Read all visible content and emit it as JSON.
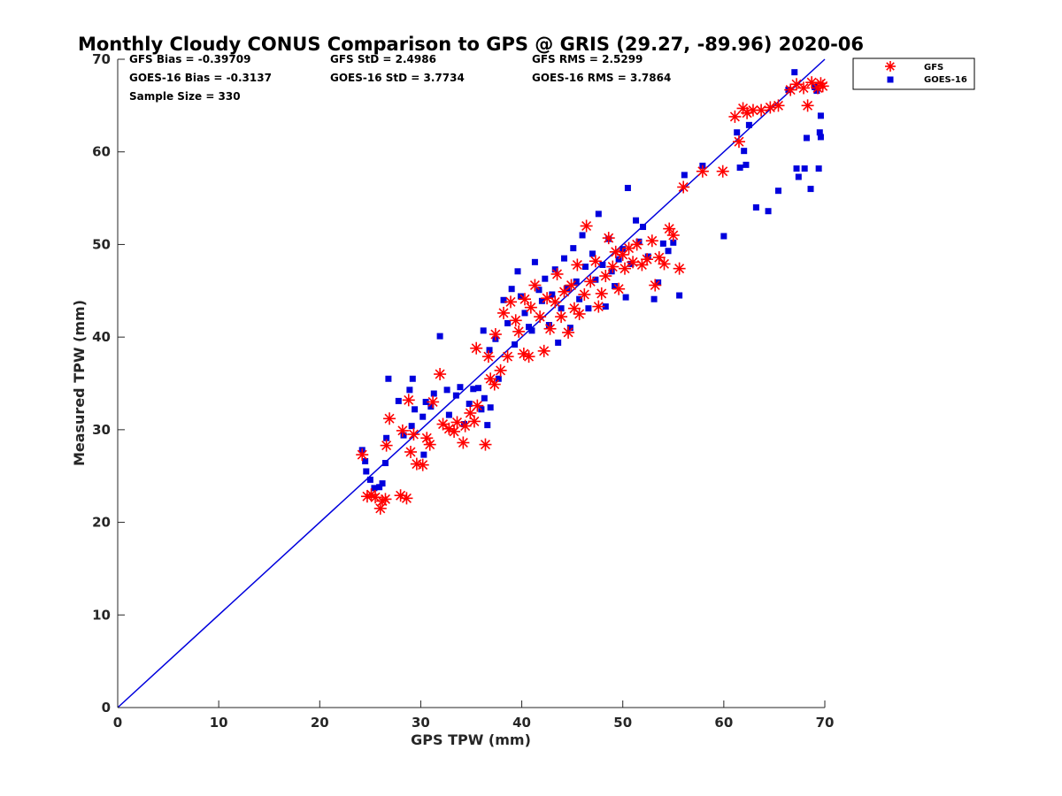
{
  "chart_data": {
    "type": "scatter",
    "title": "Monthly Cloudy CONUS Comparison to GPS @ GRIS (29.27, -89.96) 2020-06",
    "xlabel": "GPS TPW (mm)",
    "ylabel": "Measured TPW (mm)",
    "xlim": [
      0,
      70
    ],
    "ylim": [
      0,
      70
    ],
    "xticks": [
      0,
      10,
      20,
      30,
      40,
      50,
      60,
      70
    ],
    "yticks": [
      0,
      10,
      20,
      30,
      40,
      50,
      60,
      70
    ],
    "grid": false,
    "legend_position": "outside-top-right",
    "reference_line": {
      "x": [
        0,
        70
      ],
      "y": [
        0,
        70
      ],
      "color": "#0000dd"
    },
    "stats": {
      "gfs_bias": "GFS Bias = -0.39709",
      "goes_bias": "GOES-16 Bias = -0.3137",
      "sample_size": "Sample Size = 330",
      "gfs_std": "GFS StD = 2.4986",
      "goes_std": "GOES-16 StD = 3.7734",
      "gfs_rms": "GFS RMS = 2.5299",
      "goes_rms": "GOES-16 RMS = 3.7864"
    },
    "series": [
      {
        "name": "GFS",
        "marker": "asterisk",
        "color": "#ff0000",
        "points": [
          [
            24.2,
            27.3
          ],
          [
            24.7,
            22.8
          ],
          [
            25.1,
            23.0
          ],
          [
            25.5,
            22.7
          ],
          [
            26.0,
            21.5
          ],
          [
            26.2,
            22.3
          ],
          [
            26.5,
            22.5
          ],
          [
            26.6,
            28.3
          ],
          [
            26.9,
            31.2
          ],
          [
            28.0,
            22.9
          ],
          [
            28.6,
            22.6
          ],
          [
            28.2,
            29.9
          ],
          [
            28.8,
            33.2
          ],
          [
            29.0,
            27.6
          ],
          [
            29.3,
            29.5
          ],
          [
            29.6,
            26.3
          ],
          [
            30.2,
            26.2
          ],
          [
            30.6,
            29.1
          ],
          [
            30.9,
            28.4
          ],
          [
            31.2,
            33.0
          ],
          [
            31.9,
            36.0
          ],
          [
            32.2,
            30.6
          ],
          [
            32.8,
            30.1
          ],
          [
            33.3,
            29.8
          ],
          [
            33.6,
            30.8
          ],
          [
            34.2,
            28.6
          ],
          [
            34.4,
            30.4
          ],
          [
            34.9,
            31.8
          ],
          [
            35.3,
            30.9
          ],
          [
            35.6,
            32.6
          ],
          [
            36.4,
            28.4
          ],
          [
            36.9,
            35.5
          ],
          [
            37.3,
            34.9
          ],
          [
            35.5,
            38.8
          ],
          [
            36.7,
            37.9
          ],
          [
            37.4,
            40.3
          ],
          [
            37.9,
            36.4
          ],
          [
            38.6,
            37.9
          ],
          [
            38.2,
            42.6
          ],
          [
            38.9,
            43.8
          ],
          [
            39.4,
            41.8
          ],
          [
            39.7,
            40.6
          ],
          [
            40.2,
            38.2
          ],
          [
            40.7,
            37.9
          ],
          [
            40.3,
            44.1
          ],
          [
            40.9,
            43.2
          ],
          [
            41.3,
            45.6
          ],
          [
            41.8,
            42.2
          ],
          [
            42.2,
            38.5
          ],
          [
            42.5,
            44.2
          ],
          [
            42.8,
            40.9
          ],
          [
            43.3,
            43.8
          ],
          [
            43.5,
            46.8
          ],
          [
            43.9,
            42.2
          ],
          [
            44.2,
            44.9
          ],
          [
            44.6,
            40.5
          ],
          [
            44.9,
            45.6
          ],
          [
            45.2,
            43.1
          ],
          [
            45.5,
            47.8
          ],
          [
            45.7,
            42.5
          ],
          [
            46.2,
            44.6
          ],
          [
            46.4,
            52.0
          ],
          [
            46.8,
            46.0
          ],
          [
            47.3,
            48.2
          ],
          [
            47.6,
            43.3
          ],
          [
            47.9,
            44.7
          ],
          [
            48.3,
            46.6
          ],
          [
            48.6,
            50.7
          ],
          [
            49.0,
            47.6
          ],
          [
            49.3,
            49.2
          ],
          [
            49.6,
            45.2
          ],
          [
            50.0,
            48.9
          ],
          [
            50.2,
            47.4
          ],
          [
            50.6,
            49.6
          ],
          [
            51.0,
            48.1
          ],
          [
            51.4,
            50.0
          ],
          [
            51.9,
            47.8
          ],
          [
            52.4,
            48.4
          ],
          [
            52.9,
            50.4
          ],
          [
            53.2,
            45.6
          ],
          [
            53.6,
            48.6
          ],
          [
            54.1,
            47.9
          ],
          [
            54.6,
            51.7
          ],
          [
            55.0,
            51.0
          ],
          [
            55.6,
            47.4
          ],
          [
            56.0,
            56.2
          ],
          [
            57.9,
            57.9
          ],
          [
            59.9,
            57.9
          ],
          [
            61.1,
            63.8
          ],
          [
            61.5,
            61.1
          ],
          [
            61.9,
            64.7
          ],
          [
            62.3,
            64.2
          ],
          [
            62.9,
            64.5
          ],
          [
            63.7,
            64.5
          ],
          [
            64.6,
            64.8
          ],
          [
            65.4,
            65.0
          ],
          [
            66.6,
            66.7
          ],
          [
            67.2,
            67.3
          ],
          [
            67.9,
            66.9
          ],
          [
            68.3,
            65.0
          ],
          [
            68.7,
            67.5
          ],
          [
            69.3,
            66.9
          ],
          [
            69.6,
            67.4
          ],
          [
            69.8,
            67.1
          ]
        ]
      },
      {
        "name": "GOES-16",
        "marker": "square",
        "color": "#0000dd",
        "points": [
          [
            24.2,
            27.8
          ],
          [
            24.5,
            26.6
          ],
          [
            24.6,
            25.5
          ],
          [
            25.0,
            24.6
          ],
          [
            25.4,
            23.7
          ],
          [
            25.9,
            23.8
          ],
          [
            26.2,
            24.2
          ],
          [
            26.5,
            26.4
          ],
          [
            26.6,
            29.1
          ],
          [
            26.8,
            35.5
          ],
          [
            27.8,
            33.1
          ],
          [
            28.3,
            29.4
          ],
          [
            28.9,
            34.3
          ],
          [
            29.1,
            30.4
          ],
          [
            29.2,
            35.5
          ],
          [
            29.4,
            32.2
          ],
          [
            30.2,
            31.4
          ],
          [
            30.3,
            27.3
          ],
          [
            30.5,
            33.0
          ],
          [
            31.0,
            32.5
          ],
          [
            31.3,
            33.9
          ],
          [
            31.9,
            40.1
          ],
          [
            32.6,
            34.3
          ],
          [
            32.8,
            31.6
          ],
          [
            33.5,
            33.7
          ],
          [
            33.9,
            34.6
          ],
          [
            34.3,
            30.6
          ],
          [
            34.8,
            32.8
          ],
          [
            35.2,
            34.4
          ],
          [
            35.7,
            34.5
          ],
          [
            36.0,
            32.2
          ],
          [
            36.3,
            33.4
          ],
          [
            36.6,
            30.5
          ],
          [
            36.9,
            32.4
          ],
          [
            36.2,
            40.7
          ],
          [
            36.8,
            38.6
          ],
          [
            37.4,
            39.8
          ],
          [
            37.7,
            35.5
          ],
          [
            38.2,
            44.0
          ],
          [
            38.6,
            41.5
          ],
          [
            39.0,
            45.2
          ],
          [
            39.3,
            39.2
          ],
          [
            39.6,
            47.1
          ],
          [
            39.9,
            44.4
          ],
          [
            40.3,
            42.6
          ],
          [
            40.7,
            41.1
          ],
          [
            41.0,
            40.7
          ],
          [
            41.3,
            48.1
          ],
          [
            41.7,
            45.1
          ],
          [
            42.0,
            43.9
          ],
          [
            42.3,
            46.3
          ],
          [
            42.7,
            41.3
          ],
          [
            43.0,
            44.6
          ],
          [
            43.3,
            47.3
          ],
          [
            43.6,
            39.4
          ],
          [
            43.9,
            43.1
          ],
          [
            44.2,
            48.5
          ],
          [
            44.5,
            45.3
          ],
          [
            44.8,
            41.0
          ],
          [
            45.1,
            49.6
          ],
          [
            45.4,
            46.0
          ],
          [
            45.7,
            44.1
          ],
          [
            46.0,
            51.0
          ],
          [
            46.3,
            47.6
          ],
          [
            46.6,
            43.1
          ],
          [
            47.0,
            49.0
          ],
          [
            47.3,
            46.2
          ],
          [
            47.6,
            53.3
          ],
          [
            48.0,
            47.8
          ],
          [
            48.3,
            43.3
          ],
          [
            48.6,
            50.6
          ],
          [
            48.9,
            47.1
          ],
          [
            49.2,
            45.5
          ],
          [
            49.6,
            48.4
          ],
          [
            50.0,
            49.5
          ],
          [
            50.3,
            44.3
          ],
          [
            50.5,
            56.1
          ],
          [
            50.8,
            47.9
          ],
          [
            51.3,
            52.6
          ],
          [
            51.6,
            50.3
          ],
          [
            52.0,
            51.9
          ],
          [
            52.5,
            48.7
          ],
          [
            53.1,
            44.1
          ],
          [
            53.5,
            45.9
          ],
          [
            54.0,
            50.1
          ],
          [
            54.5,
            49.3
          ],
          [
            55.0,
            50.2
          ],
          [
            55.6,
            44.5
          ],
          [
            56.1,
            57.5
          ],
          [
            57.9,
            58.5
          ],
          [
            60.0,
            50.9
          ],
          [
            61.3,
            62.1
          ],
          [
            61.6,
            58.3
          ],
          [
            62.0,
            60.1
          ],
          [
            62.2,
            58.6
          ],
          [
            62.5,
            62.9
          ],
          [
            63.2,
            54.0
          ],
          [
            64.4,
            53.6
          ],
          [
            65.4,
            55.8
          ],
          [
            66.4,
            66.7
          ],
          [
            67.0,
            68.6
          ],
          [
            67.4,
            57.3
          ],
          [
            67.2,
            58.2
          ],
          [
            68.0,
            58.2
          ],
          [
            68.2,
            61.5
          ],
          [
            68.6,
            56.0
          ],
          [
            69.0,
            67.0
          ],
          [
            69.4,
            58.2
          ],
          [
            69.6,
            61.6
          ],
          [
            69.5,
            62.1
          ],
          [
            69.6,
            63.9
          ],
          [
            69.2,
            66.6
          ]
        ]
      }
    ]
  }
}
